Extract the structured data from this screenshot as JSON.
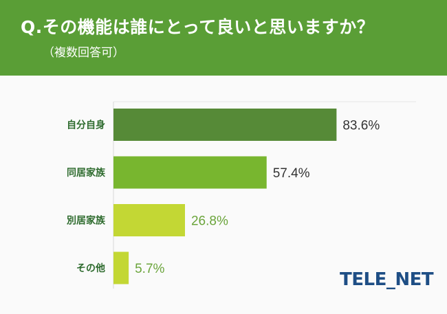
{
  "header": {
    "title": "Q.その機能は誰にとって良いと思いますか？",
    "subtitle": "（複数回答可）"
  },
  "logo_text": "TELE_NET",
  "chart_data": {
    "type": "bar",
    "orientation": "horizontal",
    "categories": [
      "自分自身",
      "同居家族",
      "別居家族",
      "その他"
    ],
    "values": [
      83.6,
      57.4,
      26.8,
      5.7
    ],
    "value_labels": [
      "83.6%",
      "57.4%",
      "26.8%",
      "5.7%"
    ],
    "xlim": [
      0,
      100
    ],
    "grid": false,
    "colors": [
      "#568a37",
      "#78b62f",
      "#c3d734",
      "#c3d734"
    ],
    "label_colors": [
      "#333333",
      "#333333",
      "#6aa43a",
      "#6aa43a"
    ],
    "category_label_color": "#2e6b2e"
  }
}
